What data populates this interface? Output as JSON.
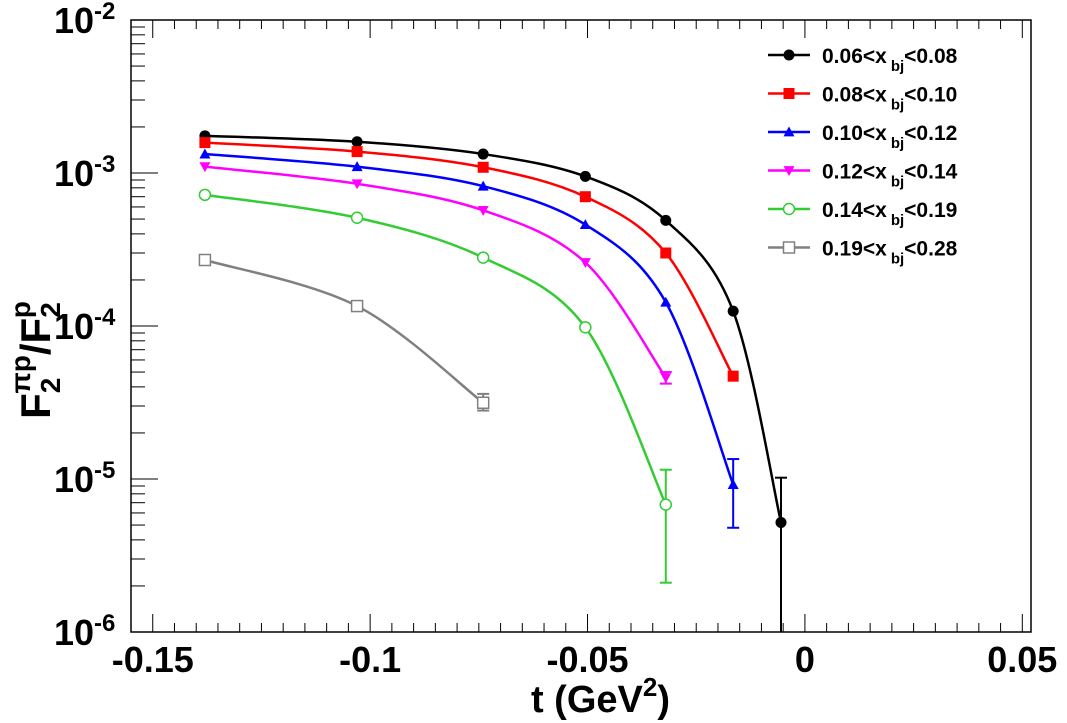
{
  "chart_data": {
    "type": "line",
    "title": "",
    "xlabel": "t (GeV²)",
    "xlabel_parts": {
      "main": "t (GeV",
      "sup": "2",
      "close": ")"
    },
    "ylabel": "F2πp/F2p",
    "ylabel_parts": {
      "f1": "F",
      "sub1": "2",
      "sup1": "πp",
      "slash": "/F",
      "sub2": "2",
      "sup2": "p"
    },
    "xlim": [
      -0.155,
      0.052
    ],
    "ylim": [
      1e-06,
      0.01
    ],
    "yscale": "log",
    "grid": false,
    "legend_position": "top-right",
    "x_ticks": [
      {
        "value": -0.15,
        "label": "-0.15"
      },
      {
        "value": -0.1,
        "label": "-0.1"
      },
      {
        "value": -0.05,
        "label": "-0.05"
      },
      {
        "value": 0,
        "label": "0"
      },
      {
        "value": 0.05,
        "label": "0.05"
      }
    ],
    "y_ticks": [
      {
        "value": 1e-06,
        "base": "10",
        "exp": "-6"
      },
      {
        "value": 1e-05,
        "base": "10",
        "exp": "-5"
      },
      {
        "value": 0.0001,
        "base": "10",
        "exp": "-4"
      },
      {
        "value": 0.001,
        "base": "10",
        "exp": "-3"
      },
      {
        "value": 0.01,
        "base": "10",
        "exp": "-2"
      }
    ],
    "series": [
      {
        "name": "0.06<x bj<0.08",
        "label_parts": {
          "pre": "0.06<x",
          "sub": "bj",
          "post": "<0.08"
        },
        "color": "#000000",
        "marker": "filled-circle",
        "x": [
          -0.138,
          -0.103,
          -0.074,
          -0.0505,
          -0.032,
          -0.0165,
          -0.0055
        ],
        "values": [
          0.00175,
          0.0016,
          0.00133,
          0.00095,
          0.00049,
          0.000125,
          5.2e-06
        ],
        "err": [
          null,
          null,
          null,
          null,
          null,
          null,
          [
            1e-07,
            1.02e-05
          ]
        ]
      },
      {
        "name": "0.08<x bj<0.10",
        "label_parts": {
          "pre": "0.08<x",
          "sub": "bj",
          "post": "<0.10"
        },
        "color": "#ff0000",
        "marker": "filled-square",
        "x": [
          -0.138,
          -0.103,
          -0.074,
          -0.0505,
          -0.032,
          -0.0165
        ],
        "values": [
          0.00158,
          0.00138,
          0.00109,
          0.0007,
          0.0003,
          4.7e-05
        ],
        "err": [
          null,
          null,
          null,
          null,
          null,
          null
        ]
      },
      {
        "name": "0.10<x bj<0.12",
        "label_parts": {
          "pre": "0.10<x",
          "sub": "bj",
          "post": "<0.12"
        },
        "color": "#0000ff",
        "marker": "filled-triangle-up",
        "x": [
          -0.138,
          -0.103,
          -0.074,
          -0.0505,
          -0.032,
          -0.0165
        ],
        "values": [
          0.00133,
          0.0011,
          0.00082,
          0.00046,
          0.000143,
          9.2e-06
        ],
        "err": [
          null,
          null,
          null,
          null,
          null,
          [
            4.8e-06,
            1.35e-05
          ]
        ]
      },
      {
        "name": "0.12<x bj<0.14",
        "label_parts": {
          "pre": "0.12<x",
          "sub": "bj",
          "post": "<0.14"
        },
        "color": "#ff00ff",
        "marker": "filled-triangle-down",
        "x": [
          -0.138,
          -0.103,
          -0.074,
          -0.0505,
          -0.032
        ],
        "values": [
          0.0011,
          0.00085,
          0.00057,
          0.00026,
          4.6e-05
        ],
        "err": [
          null,
          null,
          null,
          null,
          [
            4.2e-05,
            5e-05
          ]
        ]
      },
      {
        "name": "0.14<x bj<0.19",
        "label_parts": {
          "pre": "0.14<x",
          "sub": "bj",
          "post": "<0.19"
        },
        "color": "#33cc33",
        "marker": "open-circle",
        "x": [
          -0.138,
          -0.103,
          -0.074,
          -0.0505,
          -0.032
        ],
        "values": [
          0.00072,
          0.00051,
          0.00028,
          9.8e-05,
          6.8e-06
        ],
        "err": [
          null,
          null,
          null,
          null,
          [
            2.1e-06,
            1.15e-05
          ]
        ]
      },
      {
        "name": "0.19<x bj<0.28",
        "label_parts": {
          "pre": "0.19<x",
          "sub": "bj",
          "post": "<0.28"
        },
        "color": "#808080",
        "marker": "open-square",
        "x": [
          -0.138,
          -0.103,
          -0.074
        ],
        "values": [
          0.00027,
          0.000135,
          3.15e-05
        ],
        "err": [
          null,
          null,
          [
            2.8e-05,
            3.6e-05
          ]
        ]
      }
    ]
  }
}
